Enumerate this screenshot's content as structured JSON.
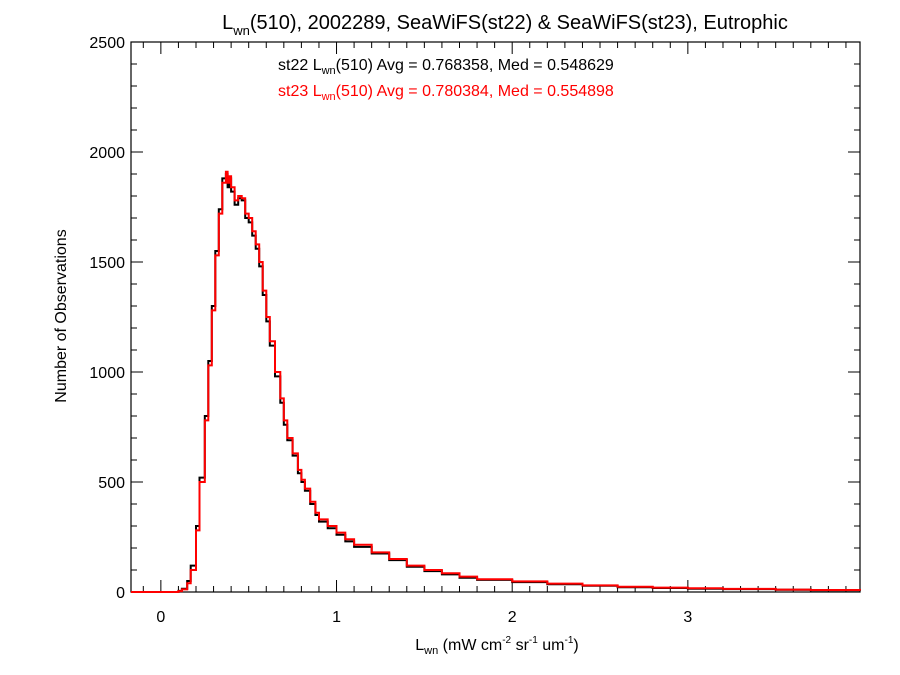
{
  "chart_data": {
    "type": "line",
    "title": {
      "symbol": "L",
      "subscript": "wn",
      "rest": "(510), 2002289, SeaWiFS(st22) & SeaWiFS(st23), Eutrophic"
    },
    "xlabel": {
      "symbol": "L",
      "subscript": "wn",
      "unit_open": " (mW cm",
      "exp1": "-2",
      "unit_mid1": " sr",
      "exp2": "-1",
      "unit_mid2": " um",
      "exp3": "-1",
      "unit_close": ")"
    },
    "ylabel": "Number of Observations",
    "xlim": [
      -0.17,
      3.98
    ],
    "ylim": [
      0,
      2500
    ],
    "x_ticks": [
      0,
      1,
      2,
      3
    ],
    "x_tick_labels": [
      "0",
      "1",
      "2",
      "3"
    ],
    "y_ticks": [
      0,
      500,
      1000,
      1500,
      2000,
      2500
    ],
    "y_tick_labels": [
      "0",
      "500",
      "1000",
      "1500",
      "2000",
      "2500"
    ],
    "annotations": [
      {
        "name": "st22",
        "prefix": "st22 L",
        "subscript": "wn",
        "suffix": "(510) Avg = 0.768358, Med = 0.548629",
        "color": "#000000"
      },
      {
        "name": "st23",
        "prefix": "st23 L",
        "subscript": "wn",
        "suffix": "(510) Avg = 0.780384, Med = 0.554898",
        "color": "#ff0000"
      }
    ],
    "series": [
      {
        "color": "#000000",
        "x": [
          -0.17,
          0.0,
          0.05,
          0.1,
          0.12,
          0.15,
          0.17,
          0.2,
          0.22,
          0.25,
          0.27,
          0.29,
          0.31,
          0.33,
          0.35,
          0.37,
          0.38,
          0.39,
          0.4,
          0.42,
          0.44,
          0.46,
          0.48,
          0.5,
          0.52,
          0.54,
          0.56,
          0.58,
          0.6,
          0.62,
          0.65,
          0.68,
          0.7,
          0.72,
          0.75,
          0.78,
          0.8,
          0.82,
          0.85,
          0.88,
          0.9,
          0.95,
          1.0,
          1.05,
          1.1,
          1.2,
          1.3,
          1.4,
          1.5,
          1.6,
          1.7,
          1.8,
          2.0,
          2.2,
          2.4,
          2.6,
          2.8,
          3.0,
          3.2,
          3.5,
          3.7,
          3.98
        ],
        "y": [
          0,
          0,
          0,
          5,
          15,
          50,
          120,
          300,
          520,
          800,
          1050,
          1300,
          1550,
          1740,
          1880,
          1900,
          1840,
          1880,
          1820,
          1760,
          1790,
          1780,
          1700,
          1680,
          1620,
          1560,
          1480,
          1350,
          1230,
          1120,
          980,
          860,
          760,
          690,
          620,
          540,
          500,
          460,
          400,
          350,
          320,
          290,
          260,
          230,
          205,
          175,
          145,
          115,
          95,
          80,
          65,
          55,
          45,
          35,
          28,
          22,
          18,
          15,
          13,
          10,
          8,
          6
        ]
      },
      {
        "color": "#ff0000",
        "x": [
          -0.17,
          0.0,
          0.05,
          0.1,
          0.12,
          0.15,
          0.17,
          0.2,
          0.22,
          0.25,
          0.27,
          0.29,
          0.31,
          0.33,
          0.35,
          0.37,
          0.38,
          0.39,
          0.4,
          0.42,
          0.44,
          0.46,
          0.48,
          0.5,
          0.52,
          0.54,
          0.56,
          0.58,
          0.6,
          0.62,
          0.65,
          0.68,
          0.7,
          0.72,
          0.75,
          0.78,
          0.8,
          0.82,
          0.85,
          0.88,
          0.9,
          0.95,
          1.0,
          1.05,
          1.1,
          1.2,
          1.3,
          1.4,
          1.5,
          1.6,
          1.7,
          1.8,
          2.0,
          2.2,
          2.4,
          2.6,
          2.8,
          3.0,
          3.2,
          3.5,
          3.7,
          3.98
        ],
        "y": [
          0,
          0,
          0,
          4,
          12,
          40,
          100,
          280,
          500,
          780,
          1030,
          1280,
          1530,
          1720,
          1860,
          1910,
          1860,
          1890,
          1840,
          1780,
          1800,
          1790,
          1720,
          1700,
          1640,
          1580,
          1500,
          1370,
          1250,
          1140,
          1000,
          880,
          780,
          700,
          630,
          555,
          510,
          470,
          410,
          360,
          330,
          300,
          270,
          240,
          215,
          180,
          150,
          120,
          100,
          85,
          70,
          58,
          48,
          38,
          30,
          24,
          20,
          17,
          14,
          11,
          9,
          7
        ]
      }
    ]
  }
}
